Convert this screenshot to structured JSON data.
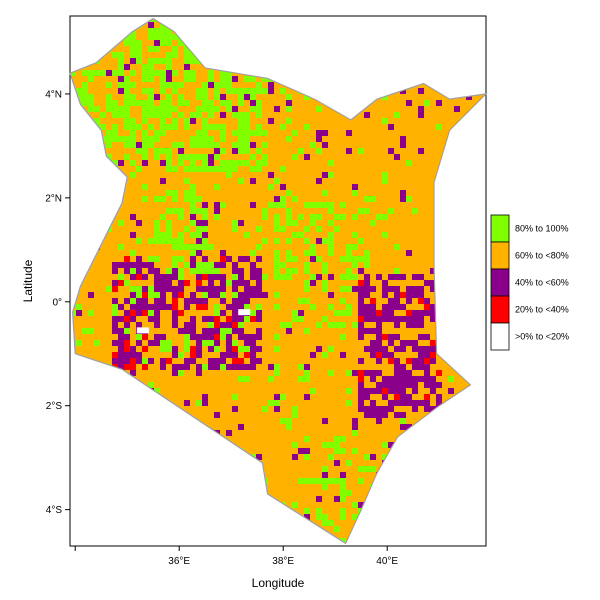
{
  "chart_data": {
    "type": "heatmap",
    "title": "",
    "xlabel": "Longitude",
    "ylabel": "Latitude",
    "xlim": [
      33.9,
      41.9
    ],
    "ylim": [
      -4.7,
      5.5
    ],
    "x_ticks": [
      {
        "value": 34,
        "label": ""
      },
      {
        "value": 36,
        "label": "36°E"
      },
      {
        "value": 38,
        "label": "38°E"
      },
      {
        "value": 40,
        "label": "40°E"
      }
    ],
    "y_ticks": [
      {
        "value": 4,
        "label": "4°N"
      },
      {
        "value": 2,
        "label": "2°N"
      },
      {
        "value": 0,
        "label": "0°"
      },
      {
        "value": -2,
        "label": "2°S"
      },
      {
        "value": -4,
        "label": "4°S"
      }
    ],
    "legend": {
      "placement": "right",
      "items": [
        {
          "label": "80% to 100%",
          "color": "#80ff00"
        },
        {
          "label": "60% to <80%",
          "color": "#ffb200"
        },
        {
          "label": "40% to <60%",
          "color": "#8b008b"
        },
        {
          "label": "20% to <40%",
          "color": "#ff0000"
        },
        {
          "label": ">0% to <20%",
          "color": "#ffffff"
        }
      ]
    },
    "outline_color": "#a0a0a0",
    "outline": [
      [
        34.0,
        -1.0
      ],
      [
        33.95,
        -0.2
      ],
      [
        34.1,
        0.3
      ],
      [
        34.4,
        0.9
      ],
      [
        34.7,
        1.5
      ],
      [
        34.9,
        1.9
      ],
      [
        35.0,
        2.4
      ],
      [
        34.6,
        2.8
      ],
      [
        34.5,
        3.3
      ],
      [
        34.1,
        3.8
      ],
      [
        33.9,
        4.4
      ],
      [
        34.4,
        4.6
      ],
      [
        35.1,
        5.2
      ],
      [
        35.5,
        5.45
      ],
      [
        35.9,
        5.2
      ],
      [
        36.5,
        4.5
      ],
      [
        37.7,
        4.3
      ],
      [
        38.6,
        3.9
      ],
      [
        39.3,
        3.5
      ],
      [
        39.8,
        3.9
      ],
      [
        40.7,
        4.2
      ],
      [
        41.2,
        3.9
      ],
      [
        41.9,
        4.0
      ],
      [
        41.2,
        3.3
      ],
      [
        40.9,
        2.3
      ],
      [
        40.9,
        0.7
      ],
      [
        40.95,
        -1.0
      ],
      [
        41.6,
        -1.6
      ],
      [
        41.0,
        -2.0
      ],
      [
        40.2,
        -2.6
      ],
      [
        39.8,
        -3.3
      ],
      [
        39.5,
        -4.0
      ],
      [
        39.2,
        -4.65
      ],
      [
        37.7,
        -3.7
      ],
      [
        37.6,
        -3.1
      ],
      [
        34.9,
        -1.3
      ],
      [
        34.3,
        -1.1
      ]
    ]
  }
}
